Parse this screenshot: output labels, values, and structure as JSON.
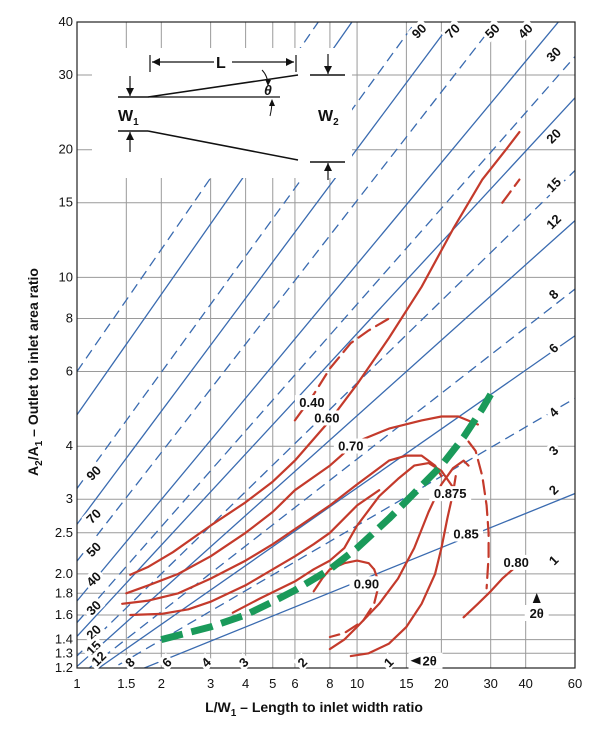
{
  "chart_data": {
    "type": "line",
    "x_scale": "log",
    "y_scale": "log",
    "xlim": [
      1,
      60
    ],
    "ylim": [
      1.2,
      40
    ],
    "grid": true,
    "xlabel": "L/W",
    "xlabel_sub": "1",
    "xlabel_rest": " – Length to inlet width ratio",
    "ylabel": "A",
    "ylabel_sub1": "2",
    "ylabel_mid": "/A",
    "ylabel_sub2": "1",
    "ylabel_rest": " – Outlet to inlet area ratio",
    "x_ticks": [
      {
        "value": 1,
        "label": "1"
      },
      {
        "value": 1.5,
        "label": "1.5"
      },
      {
        "value": 2,
        "label": "2"
      },
      {
        "value": 3,
        "label": "3"
      },
      {
        "value": 4,
        "label": "4"
      },
      {
        "value": 5,
        "label": "5"
      },
      {
        "value": 6,
        "label": "6"
      },
      {
        "value": 8,
        "label": "8"
      },
      {
        "value": 10,
        "label": "10"
      },
      {
        "value": 15,
        "label": "15"
      },
      {
        "value": 20,
        "label": "20"
      },
      {
        "value": 30,
        "label": "30"
      },
      {
        "value": 40,
        "label": "40"
      },
      {
        "value": 60,
        "label": "60"
      }
    ],
    "y_ticks": [
      {
        "value": 1.2,
        "label": "1.2"
      },
      {
        "value": 1.3,
        "label": "1.3"
      },
      {
        "value": 1.4,
        "label": "1.4"
      },
      {
        "value": 1.6,
        "label": "1.6"
      },
      {
        "value": 1.8,
        "label": "1.8"
      },
      {
        "value": 2.0,
        "label": "2.0"
      },
      {
        "value": 2.5,
        "label": "2.5"
      },
      {
        "value": 3,
        "label": "3"
      },
      {
        "value": 4,
        "label": "4"
      },
      {
        "value": 6,
        "label": "6"
      },
      {
        "value": 8,
        "label": "8"
      },
      {
        "value": 10,
        "label": "10"
      },
      {
        "value": 15,
        "label": "15"
      },
      {
        "value": 20,
        "label": "20"
      },
      {
        "value": 30,
        "label": "30"
      },
      {
        "value": 40,
        "label": "40"
      }
    ],
    "x_grid": [
      1.5,
      2,
      3,
      4,
      5,
      6,
      8,
      10,
      15,
      20,
      30,
      40
    ],
    "y_grid": [
      1.3,
      1.4,
      1.6,
      1.8,
      2.0,
      2.5,
      3,
      4,
      6,
      8,
      10,
      15,
      20,
      30
    ],
    "angle_lines": [
      {
        "label": "1",
        "style": "solid",
        "points": [
          [
            1,
            1.0349
          ],
          [
            60,
            3.0944
          ]
        ]
      },
      {
        "label": "2",
        "style": "dashed",
        "points": [
          [
            1,
            1.0698
          ],
          [
            60,
            5.1886
          ]
        ]
      },
      {
        "label": "3",
        "style": "solid",
        "points": [
          [
            1,
            1.1048
          ],
          [
            60,
            7.2858
          ]
        ]
      },
      {
        "label": "4",
        "style": "dashed",
        "points": [
          [
            1,
            1.1398
          ],
          [
            60,
            9.3862
          ]
        ]
      },
      {
        "label": "6",
        "style": "solid",
        "points": [
          [
            1,
            1.2102
          ],
          [
            60,
            13.612
          ]
        ]
      },
      {
        "label": "8",
        "style": "dashed",
        "points": [
          [
            1,
            1.2811
          ],
          [
            60,
            17.8638
          ]
        ]
      },
      {
        "label": "12",
        "style": "solid",
        "points": [
          [
            1,
            1.4251
          ],
          [
            60,
            26.5062
          ]
        ]
      },
      {
        "label": "15",
        "style": "dashed",
        "points": [
          [
            1,
            1.5359
          ],
          [
            60,
            33.154
          ]
        ]
      },
      {
        "label": "20",
        "style": "solid",
        "points": [
          [
            1,
            1.7265
          ],
          [
            60,
            44.593
          ]
        ]
      },
      {
        "label": "30",
        "style": "dashed",
        "points": [
          [
            1,
            2.1436
          ],
          [
            60,
            69.6152
          ]
        ]
      },
      {
        "label": "40",
        "style": "solid",
        "points": [
          [
            1,
            2.6181
          ],
          [
            60,
            98.0838
          ]
        ]
      },
      {
        "label": "50",
        "style": "dashed",
        "points": [
          [
            1,
            3.1803
          ],
          [
            60,
            131.816
          ]
        ]
      },
      {
        "label": "70",
        "style": "solid",
        "points": [
          [
            1,
            4.7432
          ],
          [
            60,
            225.592
          ]
        ]
      },
      {
        "label": "90",
        "style": "dashed",
        "points": [
          [
            1,
            6.0
          ],
          [
            60,
            301.0
          ]
        ]
      }
    ],
    "angle_labels": [
      {
        "text": "90",
        "x": 16.7,
        "y": 38.0,
        "rot": -45
      },
      {
        "text": "70",
        "x": 22.0,
        "y": 38.0,
        "rot": -45
      },
      {
        "text": "50",
        "x": 30.5,
        "y": 38.0,
        "rot": -45
      },
      {
        "text": "40",
        "x": 40.0,
        "y": 38.0,
        "rot": -45
      },
      {
        "text": "30",
        "x": 50.5,
        "y": 33.5,
        "rot": -45
      },
      {
        "text": "20",
        "x": 50.5,
        "y": 21.5,
        "rot": -45
      },
      {
        "text": "15",
        "x": 50.5,
        "y": 16.5,
        "rot": -45
      },
      {
        "text": "12",
        "x": 50.5,
        "y": 13.5,
        "rot": -45
      },
      {
        "text": "8",
        "x": 50.5,
        "y": 9.1,
        "rot": -45
      },
      {
        "text": "6",
        "x": 50.5,
        "y": 6.8,
        "rot": -45
      },
      {
        "text": "4",
        "x": 50.5,
        "y": 4.8,
        "rot": -45
      },
      {
        "text": "3",
        "x": 50.5,
        "y": 3.9,
        "rot": -45
      },
      {
        "text": "2",
        "x": 50.5,
        "y": 3.15,
        "rot": -45
      },
      {
        "text": "1",
        "x": 50.5,
        "y": 2.15,
        "rot": -45
      },
      {
        "text": "90",
        "x": 1.15,
        "y": 3.45,
        "rot": -45
      },
      {
        "text": "70",
        "x": 1.15,
        "y": 2.73,
        "rot": -45
      },
      {
        "text": "50",
        "x": 1.15,
        "y": 2.28,
        "rot": -45
      },
      {
        "text": "40",
        "x": 1.15,
        "y": 1.94,
        "rot": -45
      },
      {
        "text": "30",
        "x": 1.15,
        "y": 1.66,
        "rot": -45
      },
      {
        "text": "20",
        "x": 1.15,
        "y": 1.455,
        "rot": -45
      },
      {
        "text": "15",
        "x": 1.15,
        "y": 1.335,
        "rot": -45
      },
      {
        "text": "12",
        "x": 1.2,
        "y": 1.26,
        "rot": -45
      },
      {
        "text": "8",
        "x": 1.55,
        "y": 1.235,
        "rot": -45
      },
      {
        "text": "6",
        "x": 2.1,
        "y": 1.235,
        "rot": -45
      },
      {
        "text": "4",
        "x": 2.9,
        "y": 1.235,
        "rot": -45
      },
      {
        "text": "3",
        "x": 3.95,
        "y": 1.235,
        "rot": -45
      },
      {
        "text": "2",
        "x": 6.4,
        "y": 1.235,
        "rot": -45
      },
      {
        "text": "1",
        "x": 13.0,
        "y": 1.235,
        "rot": -45
      }
    ],
    "two_theta_markers": [
      {
        "text": "2θ",
        "x": 43.8,
        "y": 1.6,
        "arrow": "up"
      },
      {
        "text": "2θ",
        "x": 16.3,
        "y": 1.235,
        "arrow": "left"
      }
    ],
    "series": [
      {
        "name": "0.40",
        "style": "dashed",
        "points": [
          [
            6,
            4.6
          ],
          [
            7,
            5.3
          ],
          [
            8,
            6.1
          ],
          [
            9.5,
            7.0
          ],
          [
            11,
            7.5
          ],
          [
            13,
            8.0
          ]
        ]
      },
      {
        "name": "0.60",
        "style": "solid",
        "points": [
          [
            1.55,
            1.99
          ],
          [
            1.8,
            2.08
          ],
          [
            2.2,
            2.25
          ],
          [
            3,
            2.6
          ],
          [
            4,
            2.95
          ],
          [
            5,
            3.3
          ],
          [
            6,
            3.7
          ],
          [
            8,
            4.6
          ],
          [
            10,
            5.6
          ],
          [
            13,
            7.2
          ],
          [
            17,
            9.5
          ],
          [
            22,
            13.0
          ],
          [
            28,
            17.0
          ],
          [
            34,
            20.0
          ],
          [
            38,
            22.0
          ]
        ]
      },
      {
        "name": "0.40 upper",
        "style": "dashed",
        "points": [
          [
            33,
            15.0
          ],
          [
            35,
            15.8
          ],
          [
            38,
            17.0
          ]
        ]
      },
      {
        "name": "0.70",
        "style": "solid",
        "points": [
          [
            1.5,
            1.8
          ],
          [
            1.8,
            1.88
          ],
          [
            2.3,
            2.0
          ],
          [
            3,
            2.2
          ],
          [
            4,
            2.5
          ],
          [
            5,
            2.8
          ],
          [
            6,
            3.15
          ],
          [
            8,
            3.6
          ],
          [
            10,
            4.1
          ],
          [
            13,
            4.4
          ],
          [
            17,
            4.6
          ],
          [
            20,
            4.7
          ],
          [
            23,
            4.7
          ],
          [
            27,
            4.5
          ]
        ]
      },
      {
        "name": "0.70 lower",
        "style": "solid",
        "points": [
          [
            1.45,
            1.7
          ],
          [
            1.8,
            1.73
          ],
          [
            2.3,
            1.8
          ],
          [
            3,
            1.95
          ],
          [
            4,
            2.15
          ],
          [
            5,
            2.35
          ],
          [
            6,
            2.55
          ],
          [
            8,
            2.9
          ],
          [
            10,
            3.25
          ],
          [
            13,
            3.7
          ],
          [
            15,
            3.8
          ],
          [
            17,
            3.8
          ],
          [
            19,
            3.6
          ],
          [
            20,
            3.4
          ]
        ]
      },
      {
        "name": "0.70 third",
        "style": "solid",
        "points": [
          [
            1.55,
            1.6
          ],
          [
            2,
            1.61
          ],
          [
            2.5,
            1.65
          ],
          [
            3,
            1.72
          ],
          [
            4,
            1.88
          ],
          [
            5,
            2.05
          ],
          [
            6,
            2.2
          ],
          [
            7,
            2.35
          ],
          [
            8,
            2.5
          ],
          [
            10,
            2.9
          ],
          [
            12,
            3.15
          ]
        ]
      },
      {
        "name": "0.875",
        "style": "solid",
        "points": [
          [
            3.6,
            1.62
          ],
          [
            4.5,
            1.75
          ],
          [
            6,
            1.92
          ],
          [
            7,
            2.05
          ],
          [
            8,
            2.15
          ],
          [
            9,
            2.3
          ],
          [
            10,
            2.6
          ],
          [
            12,
            3.05
          ],
          [
            14,
            3.35
          ],
          [
            16,
            3.6
          ],
          [
            18,
            3.65
          ],
          [
            20,
            3.5
          ],
          [
            22,
            3.2
          ]
        ]
      },
      {
        "name": "0.85",
        "style": "dashed",
        "points": [
          [
            25,
            4.1
          ],
          [
            26.5,
            3.9
          ],
          [
            28,
            3.4
          ],
          [
            29,
            2.9
          ],
          [
            29.5,
            2.5
          ],
          [
            29.5,
            2.2
          ],
          [
            29,
            1.85
          ]
        ]
      },
      {
        "name": "0.875 lower",
        "style": "solid",
        "points": [
          [
            8,
            1.33
          ],
          [
            9,
            1.4
          ],
          [
            10,
            1.5
          ],
          [
            12,
            1.7
          ],
          [
            14,
            1.95
          ],
          [
            16,
            2.3
          ],
          [
            18,
            2.8
          ],
          [
            20,
            3.25
          ],
          [
            22,
            3.55
          ],
          [
            24,
            3.7
          ],
          [
            25,
            3.6
          ]
        ]
      },
      {
        "name": "0.90",
        "style": "solid",
        "points": [
          [
            7,
            1.82
          ],
          [
            7.5,
            1.95
          ],
          [
            8,
            2.05
          ],
          [
            9,
            2.12
          ],
          [
            10,
            2.15
          ],
          [
            11,
            2.12
          ],
          [
            11.5,
            2.05
          ]
        ]
      },
      {
        "name": "0.90 dashed",
        "style": "dashed",
        "points": [
          [
            11.5,
            2.05
          ],
          [
            12,
            1.9
          ],
          [
            11.5,
            1.7
          ],
          [
            10.5,
            1.55
          ],
          [
            9,
            1.45
          ],
          [
            8,
            1.42
          ]
        ]
      },
      {
        "name": "0.85 lower",
        "style": "solid",
        "points": [
          [
            9.5,
            1.28
          ],
          [
            11,
            1.3
          ],
          [
            13,
            1.37
          ],
          [
            15,
            1.5
          ],
          [
            17,
            1.7
          ],
          [
            19,
            2.0
          ],
          [
            20,
            2.3
          ],
          [
            21,
            2.7
          ],
          [
            22,
            3.1
          ],
          [
            22.5,
            3.4
          ]
        ]
      },
      {
        "name": "0.80",
        "style": "solid",
        "points": [
          [
            24,
            1.58
          ],
          [
            27,
            1.7
          ],
          [
            30,
            1.82
          ],
          [
            33,
            1.95
          ],
          [
            36,
            2.05
          ]
        ]
      },
      {
        "name": "optimum",
        "style": "thick-dashed",
        "color": "#1a9a5a",
        "points": [
          [
            2,
            1.4
          ],
          [
            3,
            1.5
          ],
          [
            4,
            1.6
          ],
          [
            5,
            1.72
          ],
          [
            6,
            1.83
          ],
          [
            8,
            2.05
          ],
          [
            10,
            2.3
          ],
          [
            13,
            2.7
          ],
          [
            16,
            3.1
          ],
          [
            20,
            3.6
          ],
          [
            24,
            4.2
          ],
          [
            28,
            4.9
          ],
          [
            30,
            5.3
          ]
        ]
      }
    ],
    "contour_labels": [
      {
        "text": "0.40",
        "x": 6.9,
        "y": 5.0
      },
      {
        "text": "0.60",
        "x": 7.8,
        "y": 4.6
      },
      {
        "text": "0.70",
        "x": 9.5,
        "y": 3.95
      },
      {
        "text": "0.875",
        "x": 21.5,
        "y": 3.05
      },
      {
        "text": "0.85",
        "x": 24.5,
        "y": 2.45
      },
      {
        "text": "0.90",
        "x": 10.8,
        "y": 1.87
      },
      {
        "text": "0.80",
        "x": 37.0,
        "y": 2.1
      }
    ],
    "colors": {
      "contour": "#c43a2b",
      "optimum": "#1a9a5a",
      "angle": "#3a6bb0",
      "grid": "#9a9a9a"
    }
  },
  "inset": {
    "label_L": "L",
    "label_W1": "W",
    "label_W1_sub": "1",
    "label_W2": "W",
    "label_W2_sub": "2",
    "label_theta": "θ"
  }
}
